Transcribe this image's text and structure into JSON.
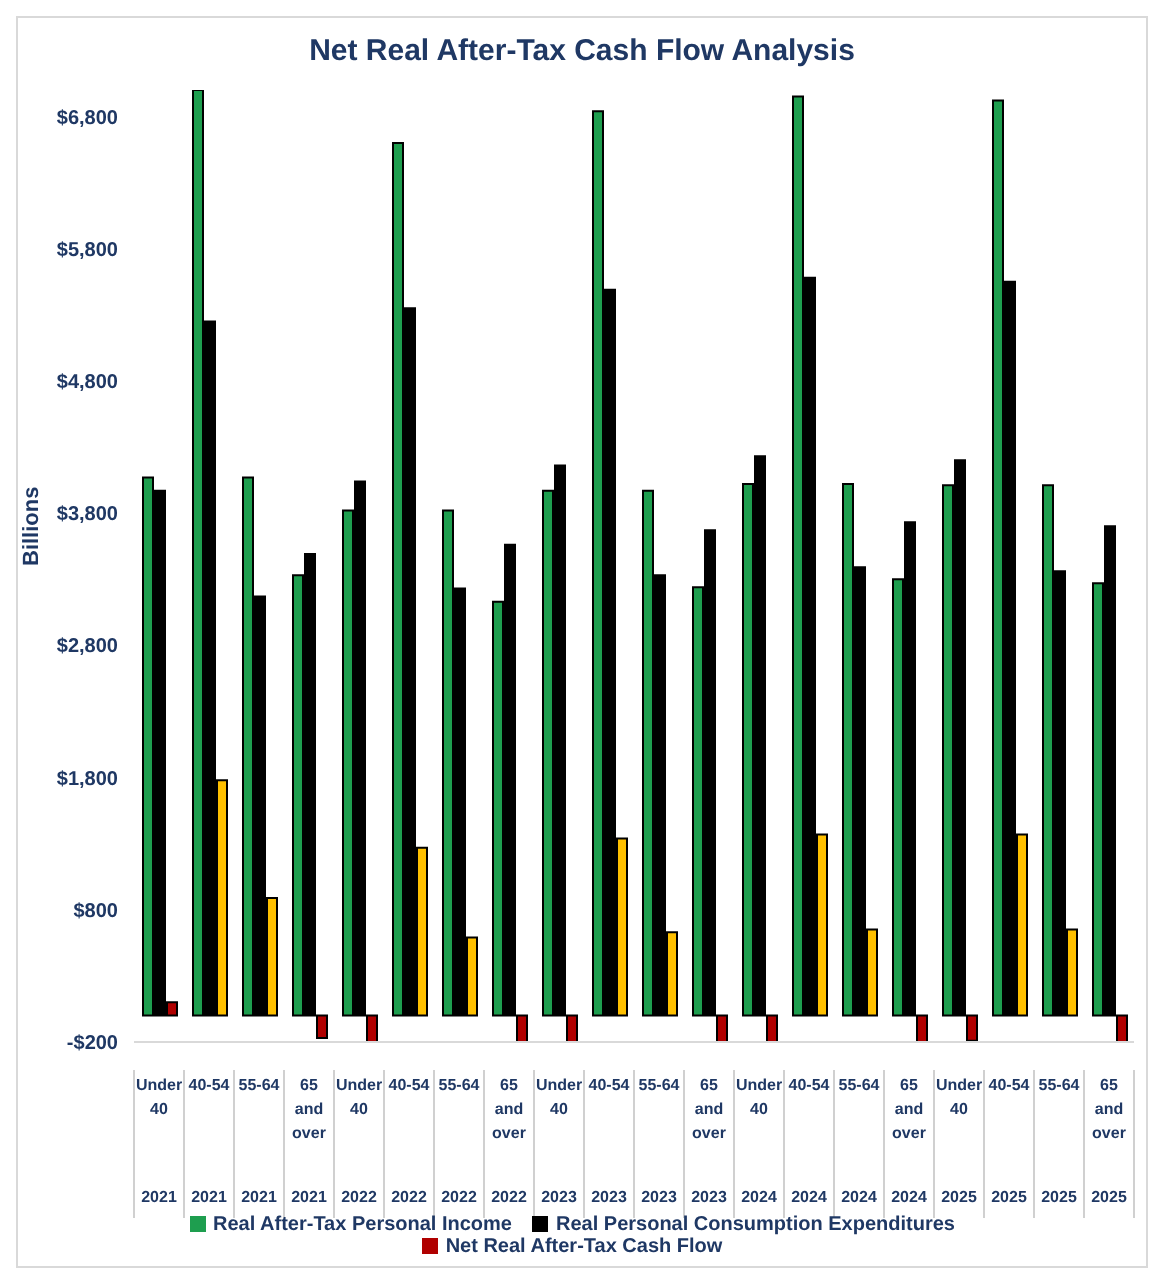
{
  "chart_data": {
    "type": "bar",
    "title": "Net Real After-Tax Cash Flow Analysis",
    "ylabel": "Billions",
    "categories": [
      "Under 40 2021",
      "40-54 2021",
      "55-64 2021",
      "65 and over 2021",
      "Under 40 2022",
      "40-54 2022",
      "55-64 2022",
      "65 and over 2022",
      "Under 40 2023",
      "40-54 2023",
      "55-64 2023",
      "65 and over 2023",
      "Under 40 2024",
      "40-54 2024",
      "55-64 2024",
      "65 and over 2024",
      "Under 40 2025",
      "40-54 2025",
      "55-64 2025",
      "65 and over 2025"
    ],
    "series": [
      {
        "name": "Real After-Tax Personal Income",
        "color": "#1e9e4f",
        "values": [
          4070,
          7000,
          4070,
          3330,
          3820,
          6600,
          3820,
          3130,
          3970,
          6840,
          3970,
          3240,
          4020,
          6950,
          4020,
          3300,
          4010,
          6920,
          4010,
          3270
        ]
      },
      {
        "name": "Real Personal Consumption Expenditures",
        "color": "#000000",
        "values": [
          3970,
          5250,
          3170,
          3490,
          4040,
          5350,
          3230,
          3560,
          4160,
          5490,
          3330,
          3670,
          4230,
          5580,
          3390,
          3730,
          4200,
          5550,
          3360,
          3700
        ]
      },
      {
        "name": "Net Real After-Tax Cash Flow",
        "color": "#b00000",
        "colors": [
          "#b00000",
          "#ffc000",
          "#ffc000",
          "#b00000",
          "#b00000",
          "#ffc000",
          "#ffc000",
          "#b00000",
          "#b00000",
          "#ffc000",
          "#ffc000",
          "#b00000",
          "#b00000",
          "#ffc000",
          "#ffc000",
          "#b00000",
          "#b00000",
          "#ffc000",
          "#ffc000",
          "#b00000"
        ],
        "values": [
          100,
          1780,
          890,
          -170,
          -200,
          1270,
          590,
          -200,
          -200,
          1340,
          630,
          -200,
          -200,
          1370,
          650,
          -200,
          -190,
          1370,
          650,
          -200
        ]
      }
    ],
    "ylim": [
      -200,
      7000
    ],
    "yticks": [
      {
        "value": -200,
        "label": "-$200"
      },
      {
        "value": 800,
        "label": "$800"
      },
      {
        "value": 1800,
        "label": "$1,800"
      },
      {
        "value": 2800,
        "label": "$2,800"
      },
      {
        "value": 3800,
        "label": "$3,800"
      },
      {
        "value": 4800,
        "label": "$4,800"
      },
      {
        "value": 5800,
        "label": "$5,800"
      },
      {
        "value": 6800,
        "label": "$6,800"
      }
    ],
    "grid": false,
    "legend": "bottom"
  }
}
